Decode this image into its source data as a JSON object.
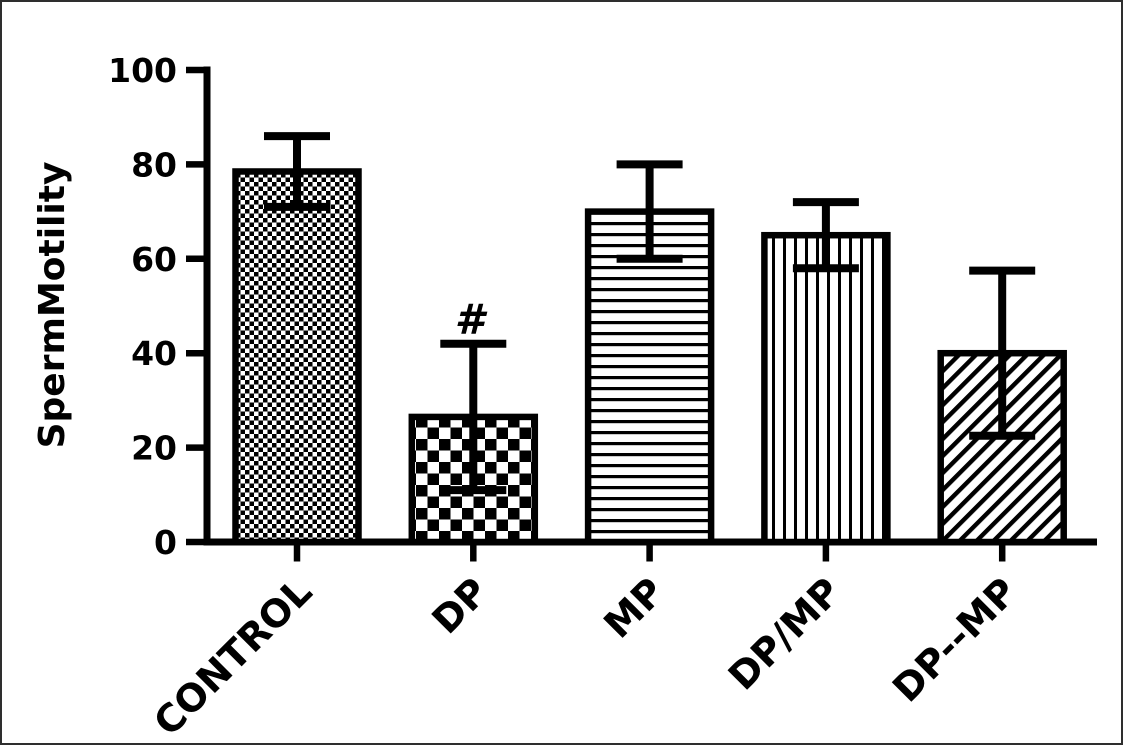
{
  "figure": {
    "background": "#ffffff",
    "frame_border_color": "#2e2e2e",
    "ink_color": "#000000"
  },
  "chart_data": {
    "type": "bar",
    "title": "",
    "xlabel": "",
    "ylabel": "SpermMotility",
    "ylim": [
      0,
      100
    ],
    "yticks": [
      0,
      20,
      40,
      60,
      80,
      100
    ],
    "grid": "off",
    "legend": "none",
    "categories": [
      "CONTROL",
      "DP",
      "MP",
      "DP/MP",
      "DP--MP"
    ],
    "values": [
      78.5,
      26.5,
      70,
      65,
      40
    ],
    "error_sd": [
      7.5,
      15.5,
      10,
      7,
      17.5
    ],
    "error_bar_style": "plus-minus SD with caps at both ends",
    "bar_patterns": [
      "fine-checkerboard",
      "coarse-checkerboard",
      "horizontal-lines",
      "vertical-lines",
      "diagonal-lines"
    ],
    "bar_fill_color": "#000000",
    "bar_background": "#ffffff",
    "annotations": [
      {
        "text": "#",
        "category": "DP",
        "position": "above-error-bar"
      }
    ]
  }
}
